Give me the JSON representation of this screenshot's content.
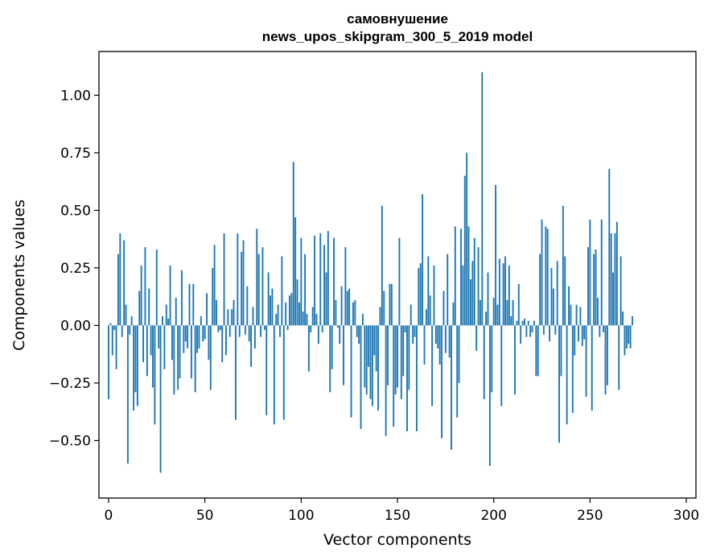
{
  "chart_data": {
    "type": "bar",
    "title": "самовнушение",
    "subtitle": "news_upos_skipgram_300_5_2019 model",
    "xlabel": "Vector components",
    "ylabel": "Components values",
    "xlim": [
      -5,
      305
    ],
    "ylim": [
      -0.75,
      1.19
    ],
    "x_ticks": [
      0,
      50,
      100,
      150,
      200,
      250,
      300
    ],
    "x_tick_labels": [
      "0",
      "50",
      "100",
      "150",
      "200",
      "250",
      "300"
    ],
    "y_ticks": [
      -0.5,
      -0.25,
      0.0,
      0.25,
      0.5,
      0.75,
      1.0
    ],
    "y_tick_labels": [
      "−0.50",
      "−0.25",
      "0.00",
      "0.25",
      "0.50",
      "0.75",
      "1.00"
    ],
    "grid": false,
    "bar_color": "#1f77b4",
    "values": [
      -0.32,
      0.01,
      -0.13,
      -0.02,
      -0.19,
      0.31,
      0.4,
      -0.05,
      0.37,
      0.09,
      -0.6,
      -0.04,
      0.04,
      -0.37,
      -0.29,
      -0.35,
      0.15,
      0.26,
      -0.16,
      0.34,
      -0.22,
      0.16,
      -0.13,
      -0.27,
      -0.43,
      0.33,
      -0.1,
      -0.64,
      0.04,
      -0.19,
      0.09,
      0.03,
      0.26,
      -0.15,
      -0.3,
      0.12,
      -0.28,
      -0.23,
      0.24,
      -0.12,
      -0.07,
      -0.1,
      0.18,
      -0.23,
      0.18,
      -0.29,
      -0.12,
      -0.1,
      0.04,
      -0.07,
      -0.06,
      0.14,
      -0.15,
      -0.28,
      0.25,
      0.35,
      0.11,
      -0.03,
      -0.02,
      -0.16,
      0.4,
      -0.13,
      0.07,
      -0.05,
      0.07,
      0.11,
      -0.41,
      0.4,
      -0.05,
      0.32,
      0.37,
      -0.04,
      0.17,
      -0.07,
      -0.18,
      0.08,
      -0.1,
      0.42,
      0.31,
      -0.05,
      0.34,
      -0.02,
      -0.39,
      0.23,
      0.13,
      0.16,
      -0.43,
      0.05,
      0.09,
      -0.05,
      0.3,
      -0.41,
      0.1,
      -0.02,
      0.13,
      0.14,
      0.71,
      0.47,
      0.2,
      0.1,
      0.38,
      0.06,
      0.31,
      0.05,
      -0.2,
      -0.03,
      0.08,
      0.39,
      0.05,
      -0.08,
      0.4,
      -0.03,
      0.35,
      0.23,
      0.41,
      -0.29,
      -0.19,
      0.38,
      0.11,
      -0.01,
      -0.08,
      0.17,
      -0.26,
      0.34,
      0.15,
      0.16,
      -0.4,
      0.1,
      0.11,
      -0.05,
      -0.08,
      -0.45,
      0.05,
      -0.27,
      -0.3,
      -0.18,
      -0.32,
      -0.35,
      -0.13,
      -0.2,
      -0.37,
      0.08,
      0.52,
      0.15,
      -0.48,
      -0.26,
      0.18,
      0.18,
      -0.44,
      -0.3,
      -0.27,
      0.38,
      -0.32,
      -0.22,
      -0.03,
      -0.46,
      -0.28,
      0.09,
      -0.08,
      -0.05,
      -0.46,
      0.25,
      0.27,
      0.57,
      -0.17,
      0.07,
      0.3,
      0.13,
      -0.35,
      0.26,
      -0.08,
      -0.1,
      -0.17,
      -0.49,
      0.15,
      -0.12,
      0.31,
      -0.14,
      -0.54,
      0.1,
      0.43,
      -0.4,
      -0.25,
      0.42,
      0.26,
      0.65,
      0.75,
      0.43,
      0.2,
      0.28,
      0.38,
      -0.11,
      0.34,
      0.11,
      1.1,
      -0.32,
      0.06,
      0.23,
      -0.61,
      -0.29,
      0.12,
      0.61,
      0.09,
      0.29,
      -0.35,
      0.27,
      0.3,
      0.11,
      0.26,
      0.04,
      0.11,
      -0.3,
      0.02,
      0.18,
      -0.08,
      0.02,
      0.03,
      -0.05,
      0.02,
      -0.05,
      -0.03,
      0.02,
      -0.22,
      -0.22,
      0.31,
      0.46,
      -0.04,
      0.43,
      0.42,
      -0.07,
      0.25,
      0.16,
      -0.04,
      0.28,
      -0.51,
      -0.22,
      0.52,
      0.3,
      -0.43,
      0.17,
      0.09,
      -0.38,
      -0.13,
      0.09,
      -0.07,
      0.08,
      -0.09,
      -0.06,
      -0.31,
      0.34,
      0.46,
      -0.37,
      0.31,
      0.33,
      0.12,
      -0.05,
      0.46,
      -0.03,
      -0.3,
      -0.26,
      0.68,
      0.4,
      0.23,
      0.4,
      0.45,
      -0.28,
      0.3,
      0.06,
      -0.13,
      -0.1,
      -0.08,
      -0.1,
      0.04
    ]
  }
}
